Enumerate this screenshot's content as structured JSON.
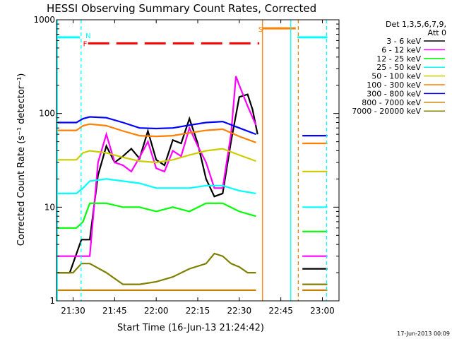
{
  "chart_data": {
    "type": "line",
    "title": "HESSI Observing Summary Count Rates, Corrected",
    "xlabel": "Start Time (16-Jun-13 21:24:42)",
    "ylabel": "Corrected Count Rate (s⁻¹ detector⁻¹)",
    "footer_date": "17-Jun-2013 00:09",
    "y_scale": "log",
    "ylim": [
      1,
      1000
    ],
    "xlim_minutes": [
      21.4,
      23.1
    ],
    "x_ticks": [
      {
        "t": 21.5,
        "label": "21:30"
      },
      {
        "t": 21.75,
        "label": "21:45"
      },
      {
        "t": 22.0,
        "label": "22:00"
      },
      {
        "t": 22.25,
        "label": "22:15"
      },
      {
        "t": 22.5,
        "label": "22:30"
      },
      {
        "t": 22.75,
        "label": "22:45"
      },
      {
        "t": 23.0,
        "label": "23:00"
      }
    ],
    "y_ticks": [
      {
        "v": 1,
        "label": "1"
      },
      {
        "v": 10,
        "label": "10"
      },
      {
        "v": 100,
        "label": "100"
      },
      {
        "v": 1000,
        "label": "1000"
      }
    ],
    "legend": {
      "header_line1": "Det 1,3,5,6,7,9,",
      "header_line2": "Att 0",
      "placement": "right"
    },
    "series": [
      {
        "name": "3 - 6 keV",
        "color": "#000000",
        "segments": [
          {
            "t": [
              21.4,
              21.48,
              21.55,
              21.6,
              21.65,
              21.7,
              21.75,
              21.8,
              21.85,
              21.9,
              21.95,
              22.0,
              22.05,
              22.1,
              22.15,
              22.2,
              22.25,
              22.3,
              22.35,
              22.4,
              22.45,
              22.5,
              22.55,
              22.58,
              22.61
            ],
            "v": [
              2.0,
              2.0,
              4.5,
              4.5,
              22,
              45,
              30,
              35,
              42,
              33,
              65,
              32,
              28,
              52,
              48,
              88,
              48,
              20,
              13,
              14,
              50,
              150,
              160,
              110,
              60
            ]
          },
          {
            "t": [
              22.88,
              22.95,
              23.03
            ],
            "v": [
              2.2,
              2.2,
              2.2
            ]
          }
        ]
      },
      {
        "name": "6 - 12 keV",
        "color": "#ff00ff",
        "segments": [
          {
            "t": [
              21.4,
              21.5,
              21.55,
              21.58,
              21.6,
              21.65,
              21.7,
              21.75,
              21.8,
              21.85,
              21.9,
              21.95,
              22.0,
              22.05,
              22.1,
              22.15,
              22.2,
              22.25,
              22.3,
              22.35,
              22.4,
              22.45,
              22.48,
              22.5,
              22.55,
              22.6
            ],
            "v": [
              3.0,
              3.0,
              3.0,
              3.0,
              3.0,
              30,
              60,
              30,
              28,
              24,
              34,
              50,
              26,
              24,
              40,
              35,
              70,
              45,
              30,
              16,
              16,
              60,
              250,
              200,
              120,
              75
            ]
          },
          {
            "t": [
              22.88,
              22.95,
              23.03
            ],
            "v": [
              3.0,
              3.0,
              3.0
            ]
          }
        ]
      },
      {
        "name": "12 - 25 keV",
        "color": "#00ff00",
        "segments": [
          {
            "t": [
              21.4,
              21.52,
              21.56,
              21.6,
              21.7,
              21.8,
              21.9,
              22.0,
              22.1,
              22.2,
              22.3,
              22.4,
              22.5,
              22.6
            ],
            "v": [
              6,
              6,
              7,
              11,
              11,
              10,
              10,
              9,
              10,
              9,
              11,
              11,
              9,
              8
            ]
          },
          {
            "t": [
              22.88,
              22.95,
              23.03
            ],
            "v": [
              5.5,
              5.5,
              5.5
            ]
          }
        ]
      },
      {
        "name": "25 - 50 keV",
        "color": "#00ffff",
        "segments": [
          {
            "t": [
              21.4,
              21.52,
              21.56,
              21.6,
              21.7,
              21.8,
              21.9,
              22.0,
              22.1,
              22.2,
              22.3,
              22.4,
              22.5,
              22.6
            ],
            "v": [
              14,
              14,
              16,
              19,
              20,
              19,
              18,
              16,
              16,
              16,
              17,
              17,
              15,
              14
            ]
          },
          {
            "t": [
              22.88,
              22.95,
              23.03
            ],
            "v": [
              10,
              10,
              10
            ]
          }
        ]
      },
      {
        "name": "50 - 100 keV",
        "color": "#cccc00",
        "segments": [
          {
            "t": [
              21.4,
              21.52,
              21.56,
              21.6,
              21.7,
              21.8,
              21.9,
              22.0,
              22.1,
              22.2,
              22.3,
              22.4,
              22.5,
              22.6
            ],
            "v": [
              32,
              32,
              38,
              40,
              38,
              34,
              31,
              30,
              32,
              36,
              40,
              42,
              36,
              31
            ]
          },
          {
            "t": [
              22.88,
              22.95,
              23.03
            ],
            "v": [
              24,
              24,
              24
            ]
          }
        ]
      },
      {
        "name": "100 - 300 keV",
        "color": "#ff8000",
        "segments": [
          {
            "t": [
              21.4,
              21.52,
              21.56,
              21.6,
              21.7,
              21.8,
              21.9,
              22.0,
              22.1,
              22.2,
              22.3,
              22.4,
              22.5,
              22.6
            ],
            "v": [
              66,
              66,
              74,
              77,
              74,
              65,
              58,
              57,
              58,
              62,
              66,
              68,
              57,
              49
            ]
          },
          {
            "t": [
              22.88,
              22.95,
              23.03
            ],
            "v": [
              48,
              48,
              48
            ]
          }
        ]
      },
      {
        "name": "300 - 800 keV",
        "color": "#0000ff",
        "segments": [
          {
            "t": [
              21.4,
              21.52,
              21.56,
              21.6,
              21.7,
              21.8,
              21.9,
              22.0,
              22.1,
              22.2,
              22.3,
              22.4,
              22.5,
              22.6
            ],
            "v": [
              80,
              80,
              88,
              92,
              90,
              80,
              70,
              69,
              70,
              75,
              80,
              82,
              70,
              60
            ]
          },
          {
            "t": [
              22.88,
              22.95,
              23.03
            ],
            "v": [
              58,
              58,
              58
            ]
          }
        ]
      },
      {
        "name": "800 - 7000 keV",
        "color": "#cc8000",
        "segments": [
          {
            "t": [
              21.4,
              21.52,
              21.56,
              21.6,
              21.7,
              21.8,
              21.9,
              22.0,
              22.1,
              22.2,
              22.3,
              22.4,
              22.5,
              22.6
            ],
            "v": [
              1.3,
              1.3,
              1.3,
              1.3,
              1.3,
              1.3,
              1.3,
              1.3,
              1.3,
              1.3,
              1.3,
              1.3,
              1.3,
              1.3
            ]
          },
          {
            "t": [
              22.88,
              22.95,
              23.03
            ],
            "v": [
              1.3,
              1.3,
              1.3
            ]
          }
        ]
      },
      {
        "name": "7000 - 20000 keV",
        "color": "#808000",
        "segments": [
          {
            "t": [
              21.4,
              21.5,
              21.55,
              21.6,
              21.7,
              21.8,
              21.9,
              22.0,
              22.1,
              22.2,
              22.3,
              22.35,
              22.4,
              22.45,
              22.5,
              22.55,
              22.6
            ],
            "v": [
              2.0,
              2.0,
              2.5,
              2.5,
              2.0,
              1.5,
              1.5,
              1.6,
              1.8,
              2.2,
              2.5,
              3.2,
              3.0,
              2.5,
              2.3,
              2.0,
              2.0
            ]
          },
          {
            "t": [
              22.88,
              22.95,
              23.03
            ],
            "v": [
              1.5,
              1.5,
              1.5
            ]
          }
        ]
      }
    ],
    "flags": [
      {
        "type": "solid-line",
        "color": "#00ffff",
        "t": [
          21.4,
          21.54
        ],
        "v": 650
      },
      {
        "type": "solid-line",
        "color": "#00ffff",
        "t": [
          22.85,
          23.03
        ],
        "v": 650
      },
      {
        "type": "solid-line",
        "color": "#ff8000",
        "t": [
          22.64,
          22.84
        ],
        "v": 810
      },
      {
        "type": "dashed-line",
        "color": "#ff0000",
        "t": [
          21.59,
          22.62
        ],
        "v": 560
      }
    ],
    "flag_labels": [
      {
        "text": "N",
        "color": "#00ffff",
        "t": 21.575,
        "v": 680
      },
      {
        "text": "F",
        "color": "#ff0000",
        "t": 21.56,
        "v": 560
      },
      {
        "text": "S",
        "color": "#ff8000",
        "t": 22.615,
        "v": 800
      }
    ],
    "vertical_markers": [
      {
        "t": 21.548,
        "color": "#00ffff",
        "style": "dashed"
      },
      {
        "t": 22.64,
        "color": "#ff8000",
        "style": "solid"
      },
      {
        "t": 22.81,
        "color": "#00ffff",
        "style": "solid"
      },
      {
        "t": 22.855,
        "color": "#ff8000",
        "style": "dashed"
      },
      {
        "t": 23.025,
        "color": "#00ffff",
        "style": "dashed"
      },
      {
        "t": 21.405,
        "color": "#00ffff",
        "style": "solid"
      }
    ]
  }
}
